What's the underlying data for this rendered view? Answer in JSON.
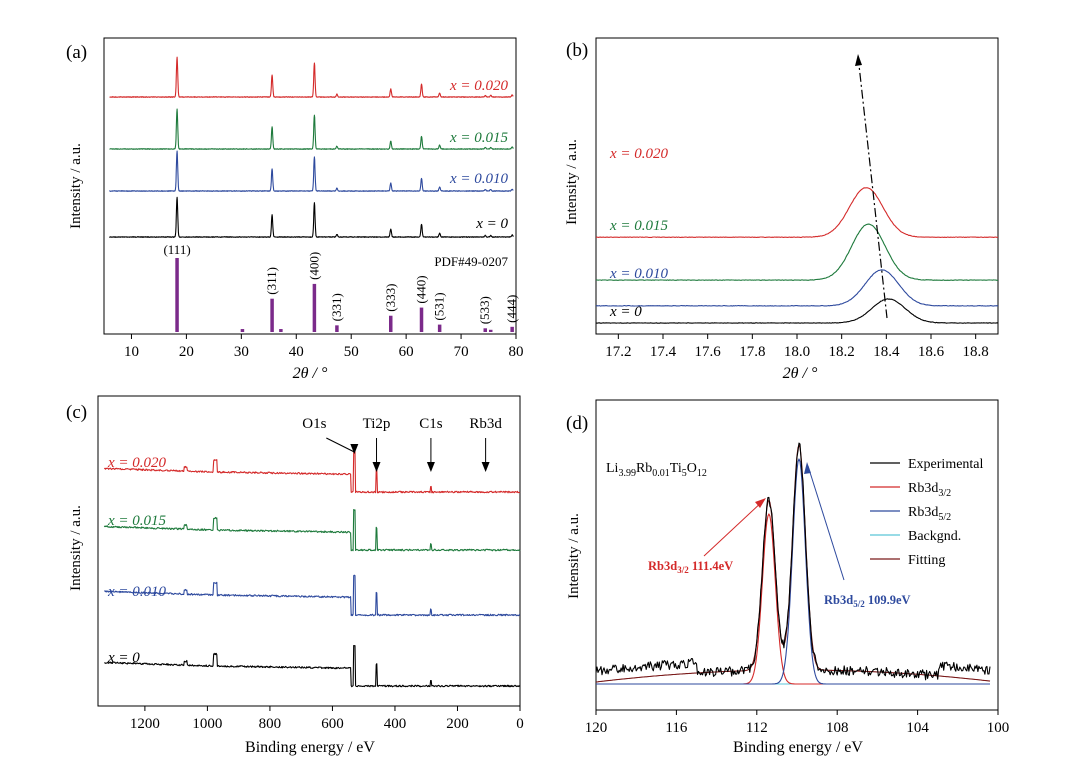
{
  "colors": {
    "x0": "#000000",
    "x010": "#2e4a9e",
    "x015": "#1e7a3c",
    "x020": "#d42a2a",
    "reference": "#7b2a8a",
    "background_fit": "#5bc5d8",
    "fitting": "#7a1a1a"
  },
  "chart_data": [
    {
      "panel": "(a)",
      "type": "line",
      "xlabel": "2θ / °",
      "ylabel": "Intensity / a.u.",
      "xlim": [
        5,
        80
      ],
      "xticks": [
        10,
        20,
        30,
        40,
        50,
        60,
        70,
        80
      ],
      "series": [
        {
          "name": "x = 0",
          "color_key": "x0"
        },
        {
          "name": "x = 0.010",
          "color_key": "x010"
        },
        {
          "name": "x = 0.015",
          "color_key": "x015"
        },
        {
          "name": "x = 0.020",
          "color_key": "x020"
        }
      ],
      "peaks_2theta": [
        18.3,
        35.6,
        43.3,
        47.4,
        57.2,
        62.8,
        66.1,
        74.4,
        75.4,
        79.3
      ],
      "peak_heights_rel": [
        1.0,
        0.55,
        0.85,
        0.07,
        0.2,
        0.32,
        0.1,
        0.04,
        0.04,
        0.05
      ],
      "reference": {
        "label": "PDF#49-0207",
        "lines": [
          {
            "x": 18.3,
            "h": 1.0,
            "hkl": "(111)"
          },
          {
            "x": 30.2,
            "h": 0.04,
            "hkl": ""
          },
          {
            "x": 35.6,
            "h": 0.45,
            "hkl": "(311)"
          },
          {
            "x": 37.2,
            "h": 0.04,
            "hkl": ""
          },
          {
            "x": 43.3,
            "h": 0.65,
            "hkl": "(400)"
          },
          {
            "x": 47.4,
            "h": 0.09,
            "hkl": "(331)"
          },
          {
            "x": 57.2,
            "h": 0.22,
            "hkl": "(333)"
          },
          {
            "x": 62.8,
            "h": 0.33,
            "hkl": "(440)"
          },
          {
            "x": 66.1,
            "h": 0.1,
            "hkl": "(531)"
          },
          {
            "x": 74.4,
            "h": 0.05,
            "hkl": "(533)"
          },
          {
            "x": 75.4,
            "h": 0.03,
            "hkl": ""
          },
          {
            "x": 79.3,
            "h": 0.07,
            "hkl": "(444)"
          }
        ]
      }
    },
    {
      "panel": "(b)",
      "type": "line",
      "xlabel": "2θ / °",
      "ylabel": "Intensity / a.u.",
      "xlim": [
        17.1,
        18.9
      ],
      "xticks": [
        17.2,
        17.4,
        17.6,
        17.8,
        18.0,
        18.2,
        18.4,
        18.6,
        18.8
      ],
      "series": [
        {
          "name": "x = 0",
          "color_key": "x0",
          "peak_center": 18.41,
          "offset": 0.0,
          "height": 0.3
        },
        {
          "name": "x = 0.010",
          "color_key": "x010",
          "peak_center": 18.38,
          "offset": 0.12,
          "height": 0.45
        },
        {
          "name": "x = 0.015",
          "color_key": "x015",
          "peak_center": 18.32,
          "offset": 0.3,
          "height": 0.7
        },
        {
          "name": "x = 0.020",
          "color_key": "x020",
          "peak_center": 18.31,
          "offset": 0.6,
          "height": 0.62
        }
      ]
    },
    {
      "panel": "(c)",
      "type": "line",
      "xlabel": "Binding energy / eV",
      "ylabel": "Intensity / a.u.",
      "xlim": [
        1350,
        0
      ],
      "xticks": [
        1200,
        1000,
        800,
        600,
        400,
        200,
        0
      ],
      "series": [
        {
          "name": "x = 0",
          "color_key": "x0"
        },
        {
          "name": "x = 0.010",
          "color_key": "x010"
        },
        {
          "name": "x = 0.015",
          "color_key": "x015"
        },
        {
          "name": "x = 0.020",
          "color_key": "x020"
        }
      ],
      "annotations": [
        {
          "text": "O1s",
          "x": 530
        },
        {
          "text": "Ti2p",
          "x": 459
        },
        {
          "text": "C1s",
          "x": 285
        },
        {
          "text": "Rb3d",
          "x": 110
        }
      ]
    },
    {
      "panel": "(d)",
      "type": "line",
      "xlabel": "Binding energy / eV",
      "ylabel": "Intensity / a.u.",
      "xlim": [
        120,
        100
      ],
      "xticks": [
        120,
        116,
        112,
        108,
        104,
        100
      ],
      "sample_label": {
        "base": "Li",
        "s1": "3.99",
        "m1": "Rb",
        "s2": "0.01",
        "m2": "Ti",
        "s3": "5",
        "m3": "O",
        "s4": "12"
      },
      "legend": [
        {
          "label": "Experimental",
          "color_key": "x0"
        },
        {
          "label": "Rb3d",
          "sub": "3/2",
          "color_key": "x020"
        },
        {
          "label": "Rb3d",
          "sub": "5/2",
          "color_key": "x010"
        },
        {
          "label": "Backgnd.",
          "color_key": "background_fit"
        },
        {
          "label": "Fitting",
          "color_key": "fitting"
        }
      ],
      "components": [
        {
          "name": "Rb3d3/2",
          "center": 111.4,
          "label_base": "Rb3d",
          "label_sub": "3/2",
          "label_value": " 111.4eV",
          "color_key": "x020"
        },
        {
          "name": "Rb3d5/2",
          "center": 109.9,
          "label_base": "Rb3d",
          "label_sub": "5/2",
          "label_value": " 109.9eV",
          "color_key": "x010"
        }
      ]
    }
  ]
}
